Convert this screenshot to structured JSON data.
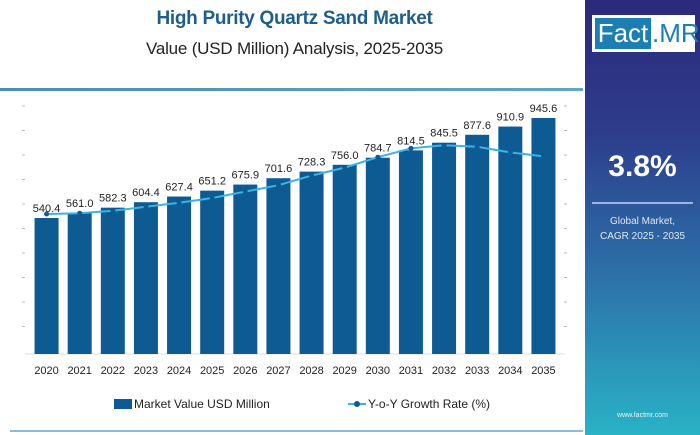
{
  "header": {
    "title": "High Purity Quartz Sand Market",
    "subtitle": "Value (USD Million) Analysis, 2025-2035"
  },
  "sidebar": {
    "logo_left": "Fact",
    "logo_right": ".MR",
    "cagr_value": "3.8%",
    "cagr_label_line1": "Global Market,",
    "cagr_label_line2": "CAGR 2025 - 2035",
    "website": "www.factmr.com"
  },
  "colors": {
    "bar": "#0e5b94",
    "line": "#3bb3e6",
    "title": "#1d5f8a"
  },
  "legend": {
    "bar_label": "Market Value USD Million",
    "line_label": "Y-o-Y Growth Rate (%)"
  },
  "chart_data": {
    "type": "bar",
    "title": "High Purity Quartz Sand Market",
    "subtitle": "Value (USD Million) Analysis, 2025-2035",
    "xlabel": "",
    "ylabel": "",
    "categories": [
      "2020",
      "2021",
      "2022",
      "2023",
      "2024",
      "2025",
      "2026",
      "2027",
      "2028",
      "2029",
      "2030",
      "2031",
      "2032",
      "2033",
      "2034",
      "2035"
    ],
    "series": [
      {
        "name": "Market Value USD Million",
        "type": "bar",
        "values": [
          540.4,
          561.0,
          582.3,
          604.4,
          627.4,
          651.2,
          675.9,
          701.6,
          728.3,
          756.0,
          784.7,
          814.5,
          845.5,
          877.6,
          910.9,
          945.6
        ]
      },
      {
        "name": "Y-o-Y Growth Rate (%)",
        "type": "line",
        "axis": "secondary",
        "values_relative": [
          0.05,
          0.06,
          0.09,
          0.14,
          0.19,
          0.25,
          0.33,
          0.41,
          0.53,
          0.63,
          0.76,
          0.87,
          0.91,
          0.89,
          0.82,
          0.77
        ]
      }
    ],
    "ylim": [
      0,
      1000
    ],
    "grid": false,
    "legend_position": "bottom"
  }
}
